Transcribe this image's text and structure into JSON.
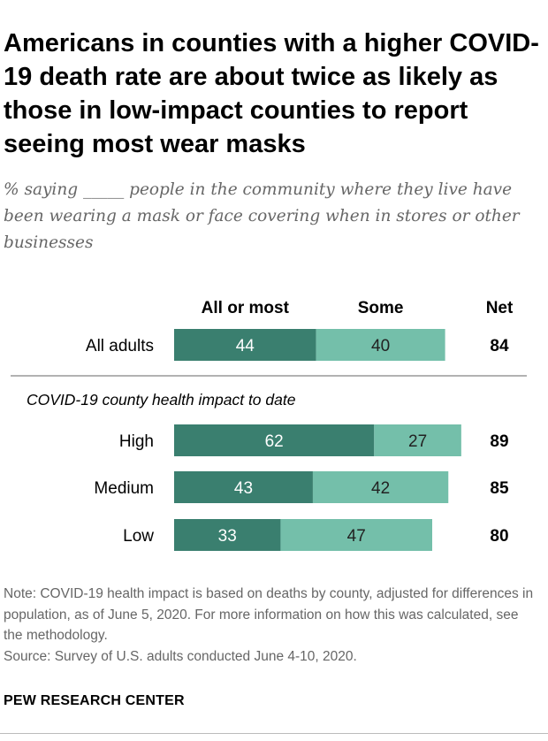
{
  "chart_data": {
    "type": "bar",
    "orientation": "horizontal",
    "stacked": true,
    "title": "Americans in counties with a higher COVID-19 death rate are about twice as likely as those in low-impact counties to report seeing most wear masks",
    "subtitle": "% saying _____ people in the community where they live have been wearing a mask or face covering when in stores or other businesses",
    "series": [
      {
        "name": "All or most",
        "color": "#3a7f6f"
      },
      {
        "name": "Some",
        "color": "#74bfaa"
      }
    ],
    "net_header": "Net",
    "group_label": "COVID-19 county health impact to date",
    "rows": [
      {
        "label": "All adults",
        "values": [
          44,
          40
        ],
        "net": 84,
        "group": "total"
      },
      {
        "label": "High",
        "values": [
          62,
          27
        ],
        "net": 89,
        "group": "impact"
      },
      {
        "label": "Medium",
        "values": [
          43,
          42
        ],
        "net": 85,
        "group": "impact"
      },
      {
        "label": "Low",
        "values": [
          33,
          47
        ],
        "net": 80,
        "group": "impact"
      }
    ],
    "xlim": [
      0,
      100
    ]
  },
  "note": "Note: COVID-19 health impact is based on deaths by county, adjusted for differences in population, as of June 5, 2020. For more information on how this was calculated, see the methodology.",
  "source": "Source: Survey of U.S. adults conducted June 4-10, 2020.",
  "brand": "PEW RESEARCH CENTER",
  "colors": {
    "text_value_dark": "#ffffff",
    "text_value_light": "#222222",
    "divider": "#999999"
  }
}
